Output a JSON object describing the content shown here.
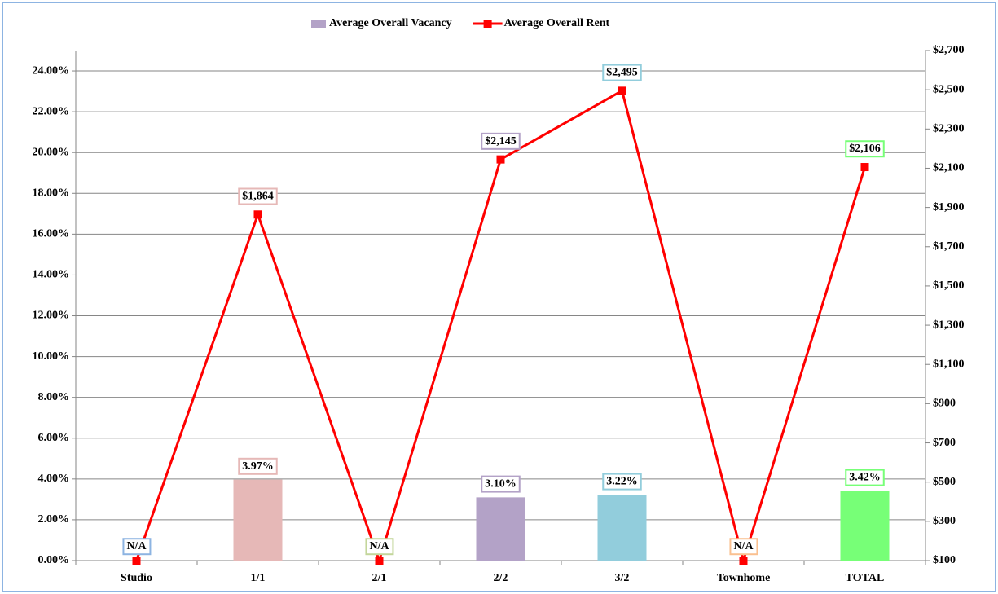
{
  "chart_data": {
    "type": "combo",
    "categories": [
      "Studio",
      "1/1",
      "2/1",
      "2/2",
      "3/2",
      "Townhome",
      "TOTAL"
    ],
    "series": [
      {
        "name": "Average Overall Vacancy",
        "type": "bar",
        "color": "#b3a2c7",
        "colors": [
          "#8db4e2",
          "#e6b8b7",
          "#c3d69b",
          "#b3a2c7",
          "#92cddc",
          "#fac090",
          "#77ff77"
        ],
        "values": [
          null,
          3.97,
          null,
          3.1,
          3.22,
          null,
          3.42
        ],
        "value_labels": [
          "N/A",
          "3.97%",
          "N/A",
          "3.10%",
          "3.22%",
          "N/A",
          "3.42%"
        ]
      },
      {
        "name": "Average Overall Rent",
        "type": "line",
        "axis": "y2",
        "color": "#ff0000",
        "colors": [
          "#8db4e2",
          "#e6b8b7",
          "#c3d69b",
          "#b3a2c7",
          "#92cddc",
          "#fac090",
          "#77ff77"
        ],
        "values": [
          100,
          1864,
          100,
          2145,
          2495,
          100,
          2106
        ],
        "value_labels": [
          null,
          "$1,864",
          null,
          "$2,145",
          "$2,495",
          null,
          "$2,106"
        ]
      }
    ],
    "ylim": [
      0,
      25
    ],
    "yticks": [
      {
        "value": 0,
        "label": "0.00%"
      },
      {
        "value": 2,
        "label": "2.00%"
      },
      {
        "value": 4,
        "label": "4.00%"
      },
      {
        "value": 6,
        "label": "6.00%"
      },
      {
        "value": 8,
        "label": "8.00%"
      },
      {
        "value": 10,
        "label": "10.00%"
      },
      {
        "value": 12,
        "label": "12.00%"
      },
      {
        "value": 14,
        "label": "14.00%"
      },
      {
        "value": 16,
        "label": "16.00%"
      },
      {
        "value": 18,
        "label": "18.00%"
      },
      {
        "value": 20,
        "label": "20.00%"
      },
      {
        "value": 22,
        "label": "22.00%"
      },
      {
        "value": 24,
        "label": "24.00%"
      }
    ],
    "y2lim": [
      100,
      2700
    ],
    "y2ticks": [
      {
        "value": 100,
        "label": "$100"
      },
      {
        "value": 300,
        "label": "$300"
      },
      {
        "value": 500,
        "label": "$500"
      },
      {
        "value": 700,
        "label": "$700"
      },
      {
        "value": 900,
        "label": "$900"
      },
      {
        "value": 1100,
        "label": "$1,100"
      },
      {
        "value": 1300,
        "label": "$1,300"
      },
      {
        "value": 1500,
        "label": "$1,500"
      },
      {
        "value": 1700,
        "label": "$1,700"
      },
      {
        "value": 1900,
        "label": "$1,900"
      },
      {
        "value": 2100,
        "label": "$2,100"
      },
      {
        "value": 2300,
        "label": "$2,300"
      },
      {
        "value": 2500,
        "label": "$2,500"
      },
      {
        "value": 2700,
        "label": "$2,700"
      }
    ],
    "grid": true,
    "legend": "top"
  }
}
